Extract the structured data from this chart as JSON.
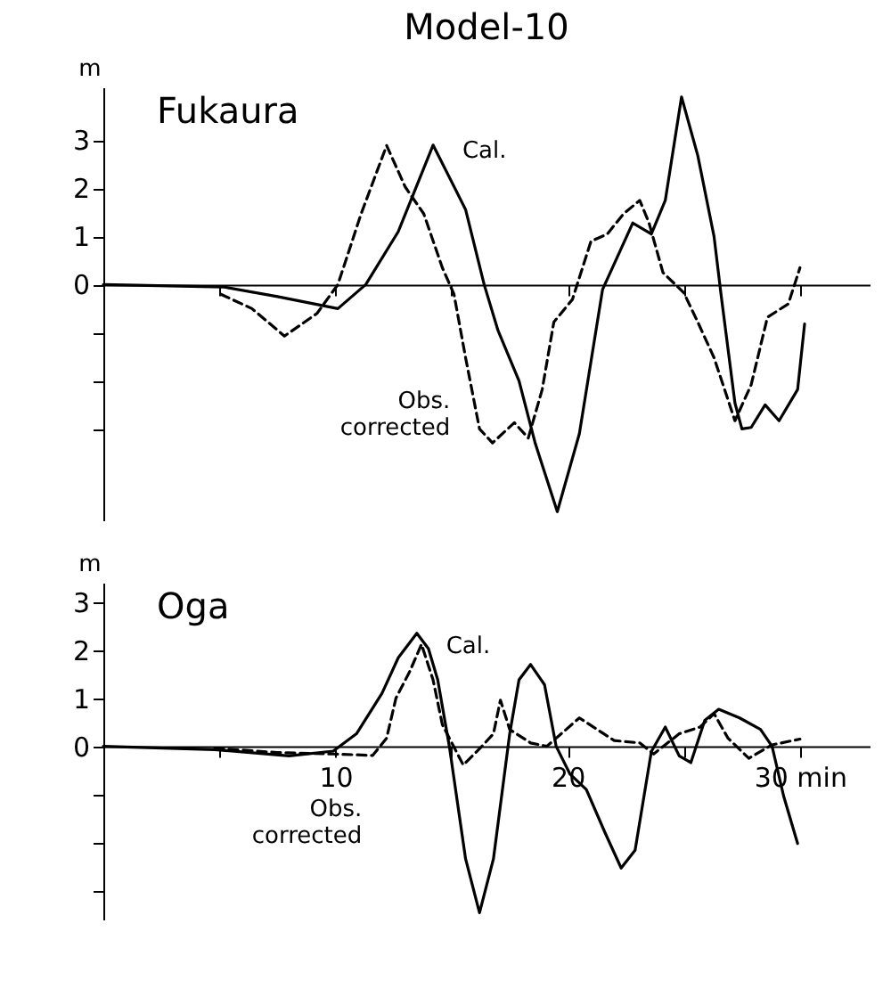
{
  "chart_data": [
    {
      "type": "line",
      "title": "Model-10",
      "subtitle": "Fukaura",
      "ylabel": "m",
      "xlim": [
        0,
        33
      ],
      "ylim": [
        -4.9,
        4.1
      ],
      "xticks": [
        {
          "value": 5,
          "label": null
        },
        {
          "value": 10,
          "label": null
        },
        {
          "value": 15,
          "label": null
        },
        {
          "value": 20,
          "label": null
        },
        {
          "value": 25,
          "label": null
        },
        {
          "value": 30,
          "label": null
        }
      ],
      "yticks": [
        3,
        2,
        1,
        0,
        {
          "value": -1,
          "label": null
        },
        {
          "value": -2,
          "label": null
        },
        {
          "value": -3,
          "label": null
        }
      ],
      "tick_labels": "y",
      "marker": "none",
      "series": [
        {
          "color": "#000000",
          "line_style": "solid",
          "x": [
            0,
            5.2,
            7.5,
            10.1,
            11.3,
            12.7,
            14.2,
            15.6,
            16.4,
            17.0,
            17.9,
            18.6,
            19.55,
            20.5,
            21.5,
            22.8,
            23.6,
            24.2,
            24.9,
            25.6,
            26.3,
            26.6,
            27.2,
            27.5,
            27.9,
            28.5,
            29.1,
            29.9,
            30.2
          ],
          "values": [
            0,
            -0.05,
            -0.25,
            -0.5,
            0,
            1.1,
            2.9,
            1.56,
            0,
            -0.96,
            -2.0,
            -3.3,
            -4.72,
            -3.1,
            -0.1,
            1.28,
            1.05,
            1.75,
            3.9,
            2.68,
            1.0,
            -0.2,
            -2.46,
            -3.0,
            -2.97,
            -2.5,
            -2.83,
            -2.18,
            -0.82
          ]
        },
        {
          "color": "#000000",
          "line_style": "dashed",
          "x": [
            5.06,
            6.4,
            7.8,
            9.2,
            10.1,
            11.1,
            12.2,
            13.0,
            13.8,
            14.6,
            15.1,
            15.6,
            16.2,
            16.76,
            17.7,
            18.3,
            18.9,
            19.4,
            20.2,
            21.0,
            21.7,
            22.4,
            23.1,
            23.5,
            24.1,
            25.0,
            25.6,
            26.3,
            27.2,
            27.9,
            28.6,
            29.5,
            30.0
          ],
          "values": [
            -0.2,
            -0.5,
            -1.07,
            -0.6,
            0,
            1.47,
            2.89,
            2.03,
            1.47,
            0.35,
            -0.2,
            -1.52,
            -3.0,
            -3.29,
            -2.87,
            -3.19,
            -2.18,
            -0.78,
            -0.31,
            0.9,
            1.05,
            1.47,
            1.75,
            1.28,
            0.25,
            -0.17,
            -0.78,
            -1.52,
            -2.83,
            -2.08,
            -0.68,
            -0.4,
            0.35
          ]
        }
      ],
      "annotations": [
        {
          "text": "Cal.",
          "x": 15.0,
          "y": 2.3
        },
        {
          "text": "Obs. corrected",
          "x": 15.4,
          "y": -1.3
        }
      ]
    },
    {
      "type": "line",
      "subtitle": "Oga",
      "ylabel": "m",
      "xlim": [
        0,
        33
      ],
      "ylim": [
        -3.6,
        3.4
      ],
      "xticks": [
        {
          "value": 5,
          "label": null
        },
        10,
        {
          "value": 15,
          "label": null
        },
        20,
        {
          "value": 25,
          "label": null
        },
        {
          "value": 30,
          "label": "30 min"
        }
      ],
      "yticks": [
        3,
        2,
        1,
        0,
        {
          "value": -1,
          "label": null
        },
        {
          "value": -2,
          "label": null
        },
        {
          "value": -3,
          "label": null
        }
      ],
      "marker": "none",
      "series": [
        {
          "color": "#000000",
          "line_style": "solid",
          "x": [
            0,
            4.8,
            8.0,
            9.9,
            10.9,
            12.0,
            12.7,
            13.5,
            14.0,
            14.4,
            14.9,
            15.6,
            16.2,
            16.8,
            17.5,
            17.9,
            18.4,
            19.0,
            19.5,
            20.1,
            20.8,
            21.6,
            22.3,
            22.9,
            23.6,
            24.2,
            24.8,
            25.3,
            25.9,
            26.5,
            27.4,
            28.3,
            28.8,
            29.3,
            29.9
          ],
          "values": [
            0,
            -0.07,
            -0.2,
            -0.1,
            0.26,
            1.1,
            1.84,
            2.35,
            2.03,
            1.38,
            0,
            -2.34,
            -3.46,
            -2.34,
            0.26,
            1.38,
            1.7,
            1.28,
            0,
            -0.58,
            -0.9,
            -1.79,
            -2.53,
            -2.16,
            -0.11,
            0.4,
            -0.2,
            -0.34,
            0.54,
            0.77,
            0.59,
            0.35,
            0,
            -1.04,
            -2.02
          ]
        },
        {
          "color": "#000000",
          "line_style": "dashed",
          "x": [
            4.8,
            7.5,
            9.9,
            11.6,
            12.2,
            12.6,
            13.2,
            13.7,
            14.2,
            14.6,
            15.5,
            16.3,
            16.8,
            17.1,
            17.5,
            18.4,
            19.1,
            20.5,
            22.0,
            23.1,
            23.7,
            24.8,
            25.7,
            26.3,
            26.9,
            27.8,
            28.8,
            30.0
          ],
          "values": [
            -0.04,
            -0.13,
            -0.16,
            -0.19,
            0.17,
            1.0,
            1.56,
            2.12,
            1.38,
            0.45,
            -0.39,
            0,
            0.26,
            0.96,
            0.35,
            0.07,
            0,
            0.59,
            0.12,
            0.07,
            -0.16,
            0.26,
            0.4,
            0.68,
            0.17,
            -0.25,
            0.03,
            0.15
          ]
        }
      ],
      "annotations": [
        {
          "text": "Cal.",
          "x": 14.3,
          "y": 1.6
        },
        {
          "text": "Obs. corrected",
          "x": 11.6,
          "y": -0.19
        }
      ]
    }
  ]
}
